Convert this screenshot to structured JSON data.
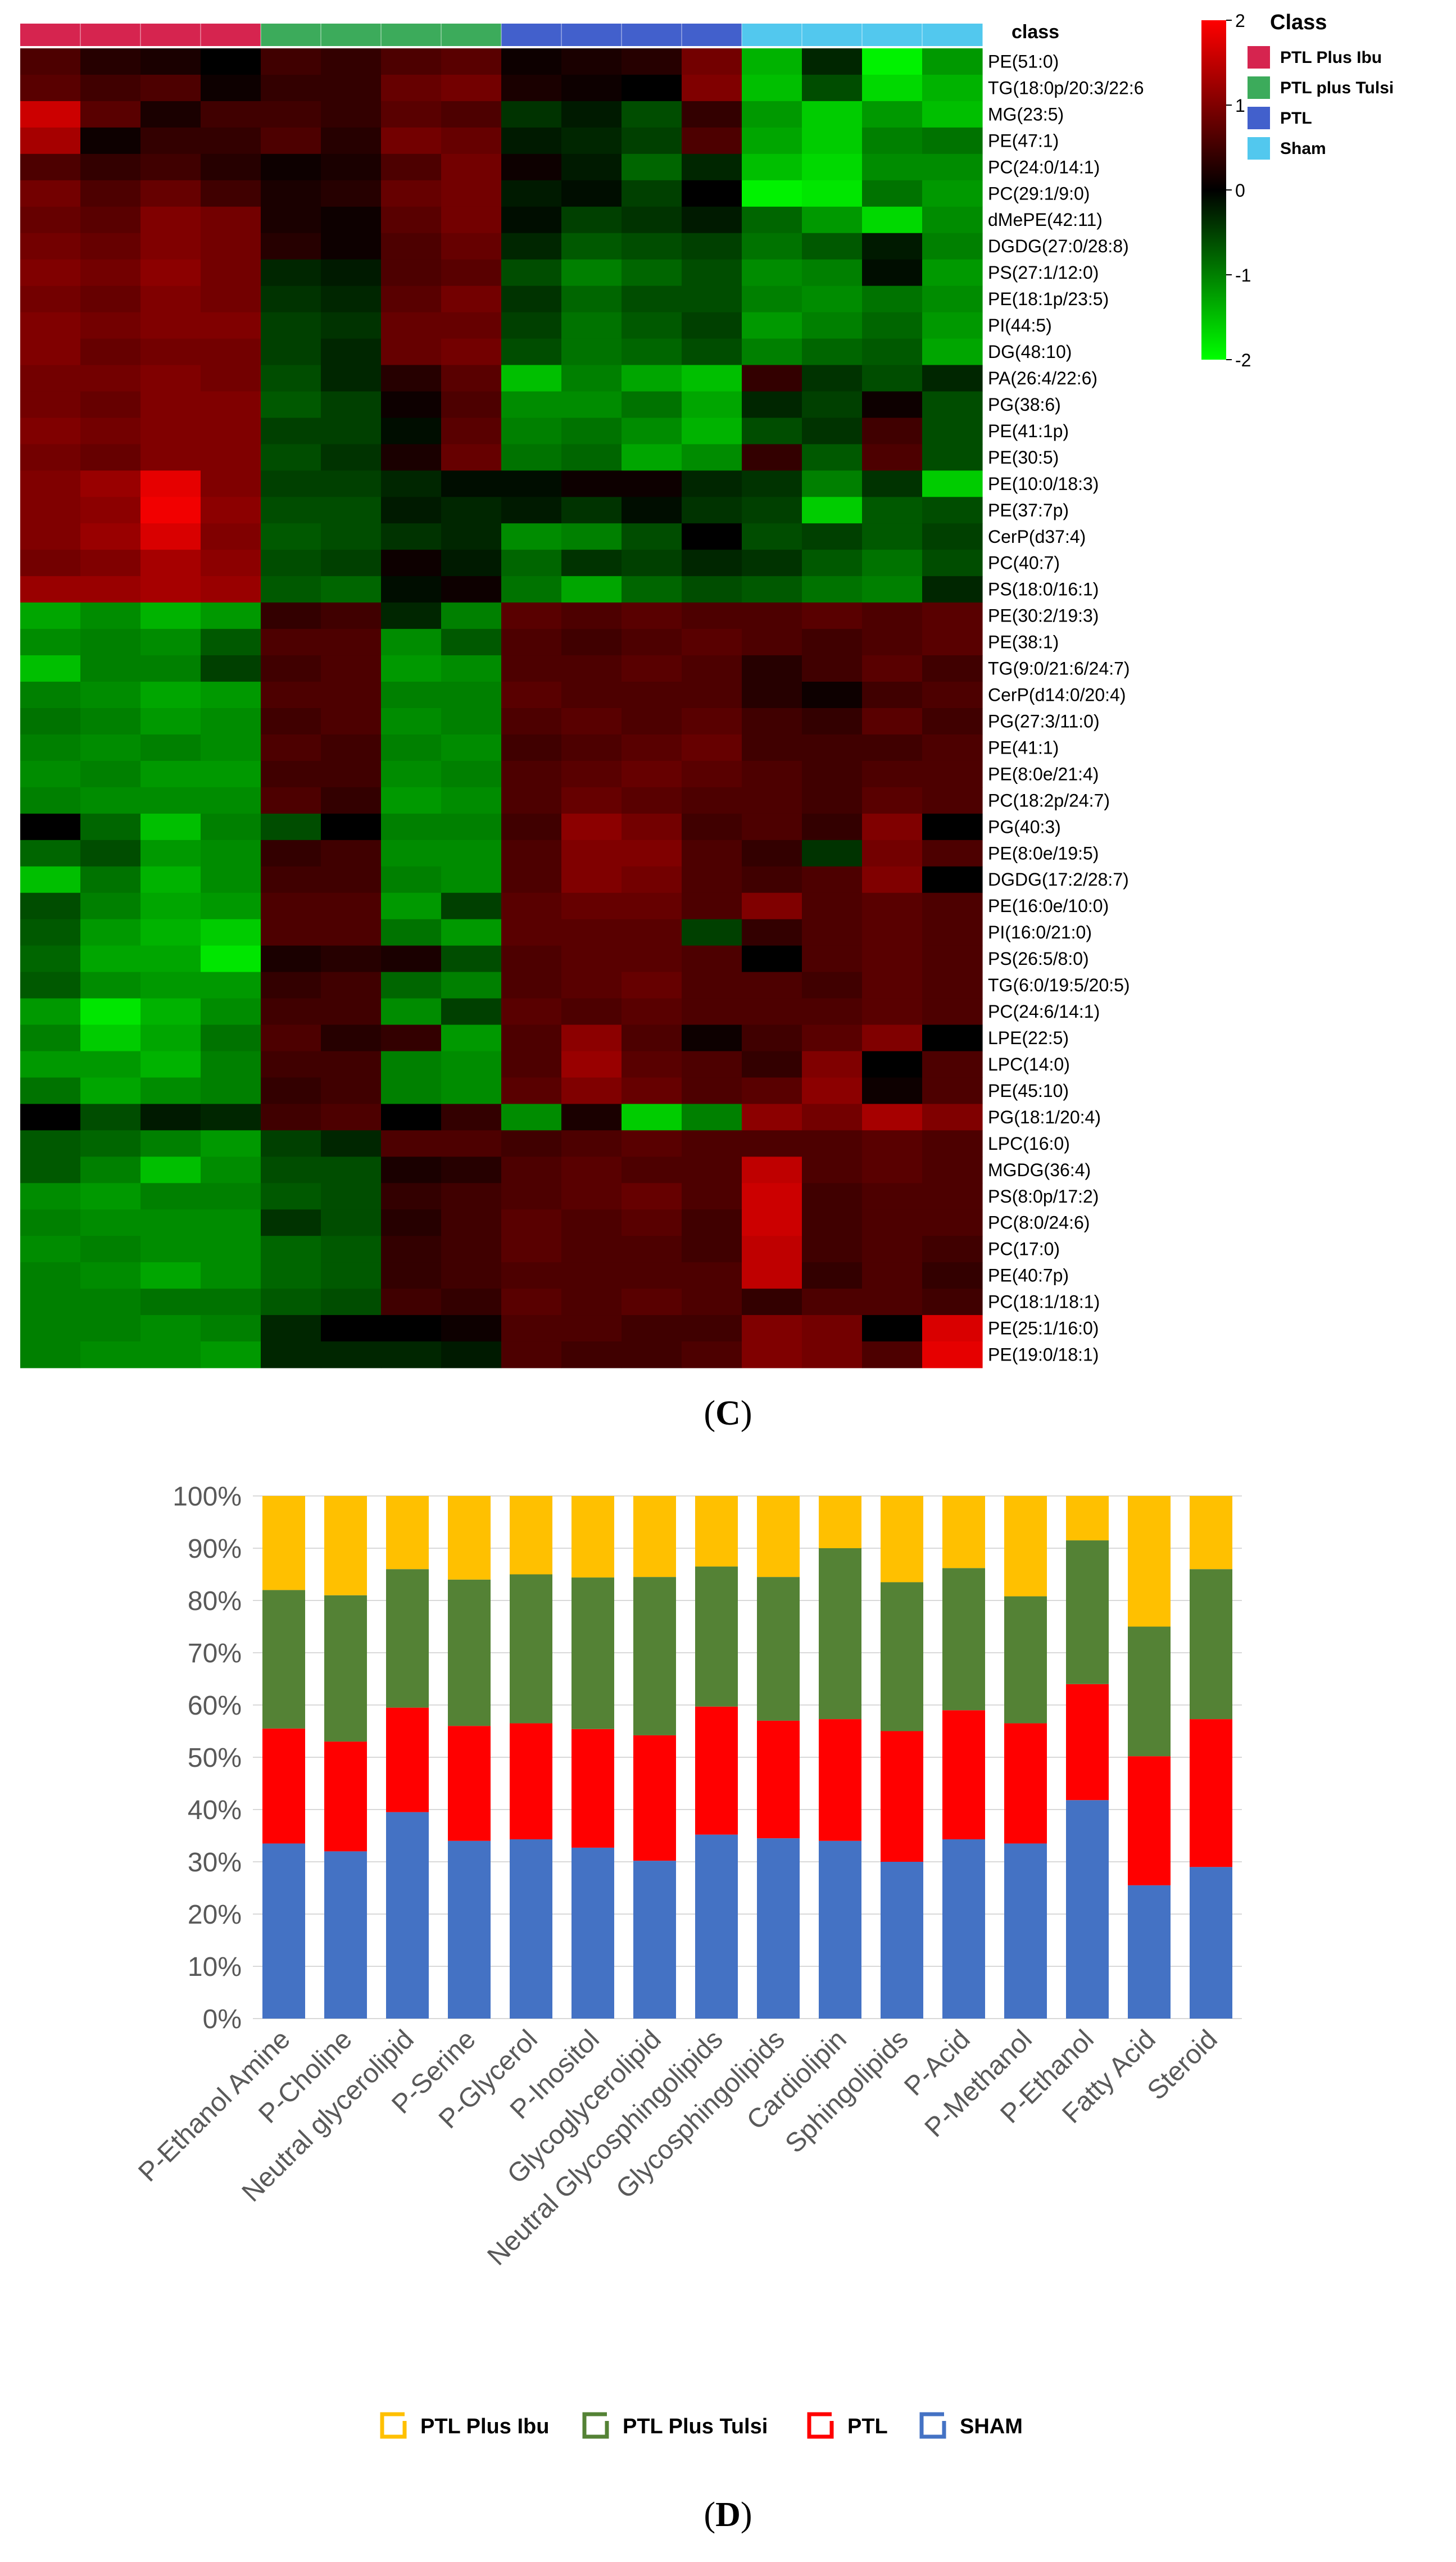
{
  "panels": {
    "c_prefix": "(",
    "c_letter": "C",
    "c_suffix": ")",
    "d_prefix": "(",
    "d_letter": "D",
    "d_suffix": ")"
  },
  "chart_data": [
    {
      "type": "heatmap",
      "title": "",
      "column_annotation_label": "class",
      "legend_title": "Class",
      "legend": [
        {
          "name": "PTL Plus Ibu",
          "color": "#d6244f"
        },
        {
          "name": "PTL plus Tulsi",
          "color": "#3cab5b"
        },
        {
          "name": "PTL",
          "color": "#4260cc"
        },
        {
          "name": "Sham",
          "color": "#52c8ee"
        }
      ],
      "column_groups": [
        "PTL Plus Ibu",
        "PTL plus Tulsi",
        "PTL",
        "Sham"
      ],
      "columns_per_group": 4,
      "colorbar": {
        "min": -2,
        "max": 2,
        "ticks": [
          2,
          1,
          0,
          -1,
          -2
        ],
        "low_color": "#00ff00",
        "mid_color": "#000000",
        "high_color": "#ff0000"
      },
      "rows": [
        "PE(51:0)",
        "TG(18:0p/20:3/22:6",
        "MG(23:5)",
        "PE(47:1)",
        "PC(24:0/14:1)",
        "PC(29:1/9:0)",
        "dMePE(42:11)",
        "DGDG(27:0/28:8)",
        "PS(27:1/12:0)",
        "PE(18:1p/23:5)",
        "PI(44:5)",
        "DG(48:10)",
        "PA(26:4/22:6)",
        "PG(38:6)",
        "PE(41:1p)",
        "PE(30:5)",
        "PE(10:0/18:3)",
        "PE(37:7p)",
        "CerP(d37:4)",
        "PC(40:7)",
        "PS(18:0/16:1)",
        "PE(30:2/19:3)",
        "PE(38:1)",
        "TG(9:0/21:6/24:7)",
        "CerP(d14:0/20:4)",
        "PG(27:3/11:0)",
        "PE(41:1)",
        "PE(8:0e/21:4)",
        "PC(18:2p/24:7)",
        "PG(40:3)",
        "PE(8:0e/19:5)",
        "DGDG(17:2/28:7)",
        "PE(16:0e/10:0)",
        "PI(16:0/21:0)",
        "PS(26:5/8:0)",
        "TG(6:0/19:5/20:5)",
        "PC(24:6/14:1)",
        "LPE(22:5)",
        "LPC(14:0)",
        "PE(45:10)",
        "PG(18:1/20:4)",
        "LPC(16:0)",
        "MGDG(36:4)",
        "PS(8:0p/17:2)",
        "PC(8:0/24:6)",
        "PC(17:0)",
        "PE(40:7p)",
        "PC(18:1/18:1)",
        "PE(25:1/16:0)",
        "PE(19:0/18:1)"
      ],
      "values": [
        [
          0.6,
          0.3,
          0.2,
          0.0,
          0.5,
          0.4,
          0.6,
          0.7,
          0.1,
          0.2,
          0.3,
          0.9,
          -1.4,
          -0.3,
          -1.9,
          -1.2
        ],
        [
          0.7,
          0.5,
          0.6,
          0.1,
          0.4,
          0.4,
          0.8,
          0.9,
          0.2,
          0.1,
          0.0,
          1.0,
          -1.5,
          -0.6,
          -1.7,
          -1.4
        ],
        [
          1.6,
          0.7,
          0.2,
          0.5,
          0.5,
          0.4,
          0.7,
          0.6,
          -0.4,
          -0.2,
          -0.6,
          0.4,
          -1.2,
          -1.6,
          -1.2,
          -1.5
        ],
        [
          1.3,
          0.1,
          0.4,
          0.4,
          0.6,
          0.3,
          0.9,
          0.8,
          -0.2,
          -0.3,
          -0.5,
          0.6,
          -1.3,
          -1.6,
          -1.0,
          -0.9
        ],
        [
          0.6,
          0.4,
          0.5,
          0.3,
          0.1,
          0.2,
          0.6,
          0.9,
          0.1,
          -0.2,
          -0.8,
          -0.3,
          -1.5,
          -1.7,
          -1.1,
          -1.1
        ],
        [
          0.9,
          0.6,
          0.8,
          0.5,
          0.2,
          0.3,
          0.8,
          0.9,
          -0.2,
          -0.1,
          -0.5,
          0.0,
          -1.9,
          -1.8,
          -0.9,
          -1.2
        ],
        [
          0.8,
          0.7,
          1.0,
          0.9,
          0.2,
          0.1,
          0.7,
          0.9,
          -0.1,
          -0.5,
          -0.4,
          -0.2,
          -0.8,
          -1.2,
          -1.7,
          -1.1
        ],
        [
          0.9,
          0.8,
          1.0,
          0.9,
          0.3,
          0.1,
          0.6,
          0.8,
          -0.3,
          -0.7,
          -0.6,
          -0.5,
          -0.9,
          -0.7,
          -0.2,
          -1.0
        ],
        [
          1.0,
          0.9,
          1.1,
          0.9,
          -0.3,
          -0.2,
          0.6,
          0.7,
          -0.6,
          -1.0,
          -0.8,
          -0.6,
          -1.1,
          -1.0,
          -0.1,
          -1.2
        ],
        [
          0.9,
          0.8,
          1.0,
          0.9,
          -0.4,
          -0.3,
          0.7,
          0.9,
          -0.4,
          -0.8,
          -0.6,
          -0.6,
          -1.0,
          -1.1,
          -0.9,
          -1.1
        ],
        [
          1.0,
          0.9,
          1.0,
          1.0,
          -0.5,
          -0.4,
          0.8,
          0.8,
          -0.5,
          -0.9,
          -0.7,
          -0.5,
          -1.2,
          -1.0,
          -0.8,
          -1.2
        ],
        [
          1.0,
          0.8,
          0.9,
          0.9,
          -0.5,
          -0.3,
          0.8,
          0.9,
          -0.6,
          -0.9,
          -0.8,
          -0.6,
          -1.0,
          -0.8,
          -0.7,
          -1.3
        ],
        [
          0.9,
          0.9,
          1.0,
          0.9,
          -0.6,
          -0.3,
          0.3,
          0.7,
          -1.5,
          -1.0,
          -1.3,
          -1.5,
          0.4,
          -0.4,
          -0.6,
          -0.3
        ],
        [
          0.9,
          0.8,
          1.0,
          1.0,
          -0.7,
          -0.5,
          0.1,
          0.6,
          -1.1,
          -1.1,
          -0.9,
          -1.3,
          -0.3,
          -0.5,
          0.1,
          -0.6
        ],
        [
          1.0,
          0.9,
          1.0,
          1.0,
          -0.5,
          -0.5,
          -0.1,
          0.7,
          -1.0,
          -0.9,
          -1.1,
          -1.4,
          -0.6,
          -0.4,
          0.5,
          -0.6
        ],
        [
          0.9,
          0.8,
          1.0,
          1.0,
          -0.6,
          -0.4,
          0.2,
          0.8,
          -0.9,
          -0.8,
          -1.3,
          -1.1,
          0.4,
          -0.7,
          0.6,
          -0.6
        ],
        [
          1.0,
          1.2,
          1.8,
          1.0,
          -0.5,
          -0.5,
          -0.3,
          -0.1,
          -0.1,
          0.1,
          0.1,
          -0.3,
          -0.4,
          -1.0,
          -0.4,
          -1.6
        ],
        [
          1.0,
          1.1,
          1.9,
          1.1,
          -0.6,
          -0.6,
          -0.2,
          -0.3,
          -0.2,
          -0.4,
          -0.1,
          -0.4,
          -0.5,
          -1.6,
          -0.7,
          -0.6
        ],
        [
          1.0,
          1.2,
          1.7,
          1.0,
          -0.7,
          -0.6,
          -0.4,
          -0.3,
          -1.1,
          -1.0,
          -0.6,
          0.0,
          -0.6,
          -0.5,
          -0.7,
          -0.5
        ],
        [
          0.9,
          1.0,
          1.3,
          1.1,
          -0.6,
          -0.5,
          0.1,
          -0.2,
          -0.8,
          -0.4,
          -0.5,
          -0.3,
          -0.4,
          -0.7,
          -0.9,
          -0.6
        ],
        [
          1.2,
          1.2,
          1.3,
          1.2,
          -0.7,
          -0.8,
          -0.1,
          0.1,
          -0.9,
          -1.3,
          -0.8,
          -0.6,
          -0.7,
          -0.9,
          -1.0,
          -0.3
        ],
        [
          -1.3,
          -1.1,
          -1.4,
          -1.2,
          0.4,
          0.5,
          -0.3,
          -1.0,
          0.7,
          0.6,
          0.7,
          0.6,
          0.6,
          0.7,
          0.6,
          0.7
        ],
        [
          -1.1,
          -1.0,
          -1.1,
          -0.7,
          0.6,
          0.6,
          -1.1,
          -0.7,
          0.6,
          0.5,
          0.6,
          0.7,
          0.6,
          0.5,
          0.6,
          0.7
        ],
        [
          -1.5,
          -1.0,
          -1.0,
          -0.5,
          0.5,
          0.6,
          -1.2,
          -1.1,
          0.6,
          0.6,
          0.7,
          0.6,
          0.3,
          0.5,
          0.7,
          0.5
        ],
        [
          -1.0,
          -1.1,
          -1.3,
          -1.2,
          0.6,
          0.6,
          -1.0,
          -1.0,
          0.7,
          0.6,
          0.6,
          0.6,
          0.3,
          0.1,
          0.5,
          0.6
        ],
        [
          -0.9,
          -1.0,
          -1.2,
          -1.1,
          0.5,
          0.6,
          -1.1,
          -1.0,
          0.6,
          0.7,
          0.6,
          0.7,
          0.5,
          0.4,
          0.7,
          0.5
        ],
        [
          -1.0,
          -1.1,
          -1.0,
          -1.1,
          0.6,
          0.5,
          -1.0,
          -1.1,
          0.5,
          0.6,
          0.7,
          0.8,
          0.5,
          0.5,
          0.5,
          0.6
        ],
        [
          -1.1,
          -1.0,
          -1.2,
          -1.2,
          0.5,
          0.5,
          -1.1,
          -1.0,
          0.6,
          0.7,
          0.8,
          0.7,
          0.6,
          0.5,
          0.6,
          0.6
        ],
        [
          -1.0,
          -1.1,
          -1.1,
          -1.1,
          0.6,
          0.4,
          -1.2,
          -1.1,
          0.6,
          0.8,
          0.7,
          0.6,
          0.6,
          0.5,
          0.7,
          0.6
        ],
        [
          0.0,
          -0.8,
          -1.5,
          -1.0,
          -0.6,
          0.0,
          -1.0,
          -1.0,
          0.5,
          1.1,
          0.9,
          0.5,
          0.6,
          0.4,
          1.0,
          0.0
        ],
        [
          -0.8,
          -0.6,
          -1.2,
          -1.1,
          0.4,
          0.5,
          -1.1,
          -1.1,
          0.6,
          1.0,
          1.0,
          0.6,
          0.4,
          -0.4,
          0.9,
          0.6
        ],
        [
          -1.5,
          -0.9,
          -1.4,
          -1.1,
          0.5,
          0.5,
          -1.0,
          -1.1,
          0.6,
          1.0,
          0.9,
          0.6,
          0.5,
          0.6,
          1.0,
          0.0
        ],
        [
          -0.6,
          -1.0,
          -1.3,
          -1.2,
          0.6,
          0.6,
          -1.2,
          -0.5,
          0.7,
          0.8,
          0.8,
          0.6,
          1.0,
          0.6,
          0.7,
          0.6
        ],
        [
          -0.7,
          -1.2,
          -1.4,
          -1.6,
          0.6,
          0.6,
          -0.9,
          -1.2,
          0.7,
          0.7,
          0.7,
          -0.5,
          0.4,
          0.6,
          0.7,
          0.6
        ],
        [
          -0.8,
          -1.3,
          -1.3,
          -1.8,
          0.2,
          0.3,
          0.2,
          -0.6,
          0.6,
          0.7,
          0.7,
          0.6,
          0.0,
          0.6,
          0.7,
          0.6
        ],
        [
          -0.7,
          -1.1,
          -1.2,
          -1.2,
          0.4,
          0.5,
          -0.8,
          -1.0,
          0.6,
          0.7,
          0.8,
          0.6,
          0.6,
          0.5,
          0.7,
          0.6
        ],
        [
          -1.2,
          -1.8,
          -1.4,
          -1.1,
          0.5,
          0.5,
          -1.1,
          -0.5,
          0.7,
          0.6,
          0.7,
          0.6,
          0.6,
          0.6,
          0.7,
          0.6
        ],
        [
          -1.0,
          -1.6,
          -1.3,
          -0.9,
          0.6,
          0.3,
          0.4,
          -1.2,
          0.6,
          1.1,
          0.6,
          0.1,
          0.5,
          0.7,
          1.0,
          0.0
        ],
        [
          -1.2,
          -1.2,
          -1.4,
          -1.0,
          0.5,
          0.5,
          -1.0,
          -1.1,
          0.6,
          1.2,
          0.7,
          0.6,
          0.4,
          1.0,
          0.0,
          0.6
        ],
        [
          -0.9,
          -1.3,
          -1.1,
          -1.0,
          0.4,
          0.5,
          -1.0,
          -1.1,
          0.7,
          1.0,
          0.8,
          0.6,
          0.7,
          1.1,
          0.1,
          0.6
        ],
        [
          0.0,
          -0.6,
          -0.2,
          -0.3,
          0.5,
          0.6,
          0.0,
          0.4,
          -1.1,
          0.2,
          -1.6,
          -1.0,
          1.1,
          0.9,
          1.3,
          1.0
        ],
        [
          -0.7,
          -0.8,
          -1.0,
          -1.2,
          -0.5,
          -0.3,
          0.6,
          0.6,
          0.5,
          0.6,
          0.7,
          0.6,
          0.6,
          0.6,
          0.7,
          0.6
        ],
        [
          -0.7,
          -1.0,
          -1.5,
          -1.1,
          -0.6,
          -0.6,
          0.2,
          0.3,
          0.6,
          0.7,
          0.6,
          0.6,
          1.5,
          0.6,
          0.7,
          0.6
        ],
        [
          -1.1,
          -1.2,
          -1.0,
          -1.0,
          -0.7,
          -0.6,
          0.4,
          0.5,
          0.6,
          0.7,
          0.8,
          0.6,
          1.6,
          0.5,
          0.6,
          0.6
        ],
        [
          -1.0,
          -1.1,
          -1.1,
          -1.1,
          -0.4,
          -0.6,
          0.3,
          0.5,
          0.7,
          0.6,
          0.7,
          0.5,
          1.6,
          0.5,
          0.6,
          0.6
        ],
        [
          -1.1,
          -1.0,
          -1.1,
          -1.1,
          -0.8,
          -0.7,
          0.4,
          0.5,
          0.7,
          0.6,
          0.6,
          0.5,
          1.5,
          0.5,
          0.6,
          0.5
        ],
        [
          -1.0,
          -1.1,
          -1.3,
          -1.1,
          -0.8,
          -0.7,
          0.4,
          0.5,
          0.6,
          0.6,
          0.6,
          0.6,
          1.5,
          0.4,
          0.6,
          0.4
        ],
        [
          -1.0,
          -1.0,
          -0.9,
          -0.9,
          -0.7,
          -0.6,
          0.5,
          0.4,
          0.7,
          0.6,
          0.7,
          0.6,
          0.4,
          0.6,
          0.6,
          0.5
        ],
        [
          -1.0,
          -1.0,
          -1.1,
          -1.0,
          -0.3,
          0.0,
          0.0,
          0.1,
          0.6,
          0.6,
          0.5,
          0.5,
          1.0,
          0.9,
          0.0,
          1.7
        ],
        [
          -1.0,
          -1.1,
          -1.1,
          -1.2,
          -0.3,
          -0.3,
          -0.3,
          -0.2,
          0.6,
          0.5,
          0.5,
          0.6,
          1.0,
          0.9,
          0.6,
          1.8
        ]
      ]
    },
    {
      "type": "bar",
      "stacked": true,
      "percent": true,
      "title": "",
      "xlabel": "",
      "ylabel": "",
      "ylim": [
        0,
        100
      ],
      "yticks": [
        "0%",
        "10%",
        "20%",
        "30%",
        "40%",
        "50%",
        "60%",
        "70%",
        "80%",
        "90%",
        "100%"
      ],
      "grid": true,
      "legend_position": "bottom",
      "categories": [
        "P-Ethanol Amine",
        "P-Choline",
        "Neutral glycerolipid",
        "P-Serine",
        "P-Glycerol",
        "P-Inositol",
        "Glycoglycerolipid",
        "Neutral Glycosphingolipids",
        "Glycosphingolipids",
        "Cardiolipin",
        "Sphingolipids",
        "P-Acid",
        "P-Methanol",
        "P-Ethanol",
        "Fatty Acid",
        "Steroid"
      ],
      "series": [
        {
          "name": "SHAM",
          "color": "#4472c4",
          "values": [
            33.5,
            32,
            39.5,
            34,
            34.3,
            32.7,
            30.2,
            35.2,
            34.5,
            34,
            30,
            34.3,
            33.5,
            41.8,
            25.5,
            29
          ]
        },
        {
          "name": "PTL",
          "color": "#ff0000",
          "values": [
            22,
            21,
            20,
            22,
            22.2,
            22.7,
            24,
            24.5,
            22.5,
            23.3,
            25,
            24.7,
            23,
            22.2,
            24.7,
            28.3
          ]
        },
        {
          "name": "PTL Plus Tulsi",
          "color": "#548235",
          "values": [
            26.5,
            28,
            26.5,
            28,
            28.5,
            29,
            30.3,
            26.8,
            27.5,
            32.7,
            28.5,
            27.2,
            24.3,
            27.5,
            24.8,
            28.7
          ]
        },
        {
          "name": "PTL Plus Ibu",
          "color": "#ffc000",
          "values": [
            18,
            19,
            14,
            16,
            15,
            15.6,
            15.5,
            13.5,
            15.5,
            10,
            16.5,
            13.8,
            19.2,
            8.5,
            25,
            14
          ]
        }
      ],
      "legend_order": [
        "PTL Plus Ibu",
        "PTL Plus Tulsi",
        "PTL",
        "SHAM"
      ]
    }
  ]
}
